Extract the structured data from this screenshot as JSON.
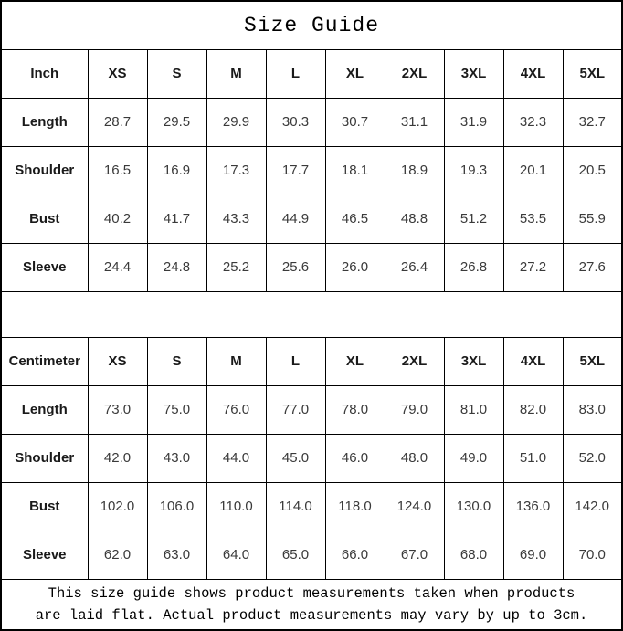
{
  "title": "Size Guide",
  "footer_note": {
    "line1": "This size guide shows product measurements taken when products",
    "line2": "are laid flat. Actual product measurements may vary by up to 3cm."
  },
  "chart_data": [
    {
      "type": "table",
      "name": "inch-size-table",
      "header": [
        "Inch",
        "XS",
        "S",
        "M",
        "L",
        "XL",
        "2XL",
        "3XL",
        "4XL",
        "5XL"
      ],
      "rows": [
        {
          "label": "Length",
          "values": [
            "28.7",
            "29.5",
            "29.9",
            "30.3",
            "30.7",
            "31.1",
            "31.9",
            "32.3",
            "32.7"
          ]
        },
        {
          "label": "Shoulder",
          "values": [
            "16.5",
            "16.9",
            "17.3",
            "17.7",
            "18.1",
            "18.9",
            "19.3",
            "20.1",
            "20.5"
          ]
        },
        {
          "label": "Bust",
          "values": [
            "40.2",
            "41.7",
            "43.3",
            "44.9",
            "46.5",
            "48.8",
            "51.2",
            "53.5",
            "55.9"
          ]
        },
        {
          "label": "Sleeve",
          "values": [
            "24.4",
            "24.8",
            "25.2",
            "25.6",
            "26.0",
            "26.4",
            "26.8",
            "27.2",
            "27.6"
          ]
        }
      ]
    },
    {
      "type": "table",
      "name": "centimeter-size-table",
      "header": [
        "Centimeter",
        "XS",
        "S",
        "M",
        "L",
        "XL",
        "2XL",
        "3XL",
        "4XL",
        "5XL"
      ],
      "rows": [
        {
          "label": "Length",
          "values": [
            "73.0",
            "75.0",
            "76.0",
            "77.0",
            "78.0",
            "79.0",
            "81.0",
            "82.0",
            "83.0"
          ]
        },
        {
          "label": "Shoulder",
          "values": [
            "42.0",
            "43.0",
            "44.0",
            "45.0",
            "46.0",
            "48.0",
            "49.0",
            "51.0",
            "52.0"
          ]
        },
        {
          "label": "Bust",
          "values": [
            "102.0",
            "106.0",
            "110.0",
            "114.0",
            "118.0",
            "124.0",
            "130.0",
            "136.0",
            "142.0"
          ]
        },
        {
          "label": "Sleeve",
          "values": [
            "62.0",
            "63.0",
            "64.0",
            "65.0",
            "66.0",
            "67.0",
            "68.0",
            "69.0",
            "70.0"
          ]
        }
      ]
    }
  ]
}
